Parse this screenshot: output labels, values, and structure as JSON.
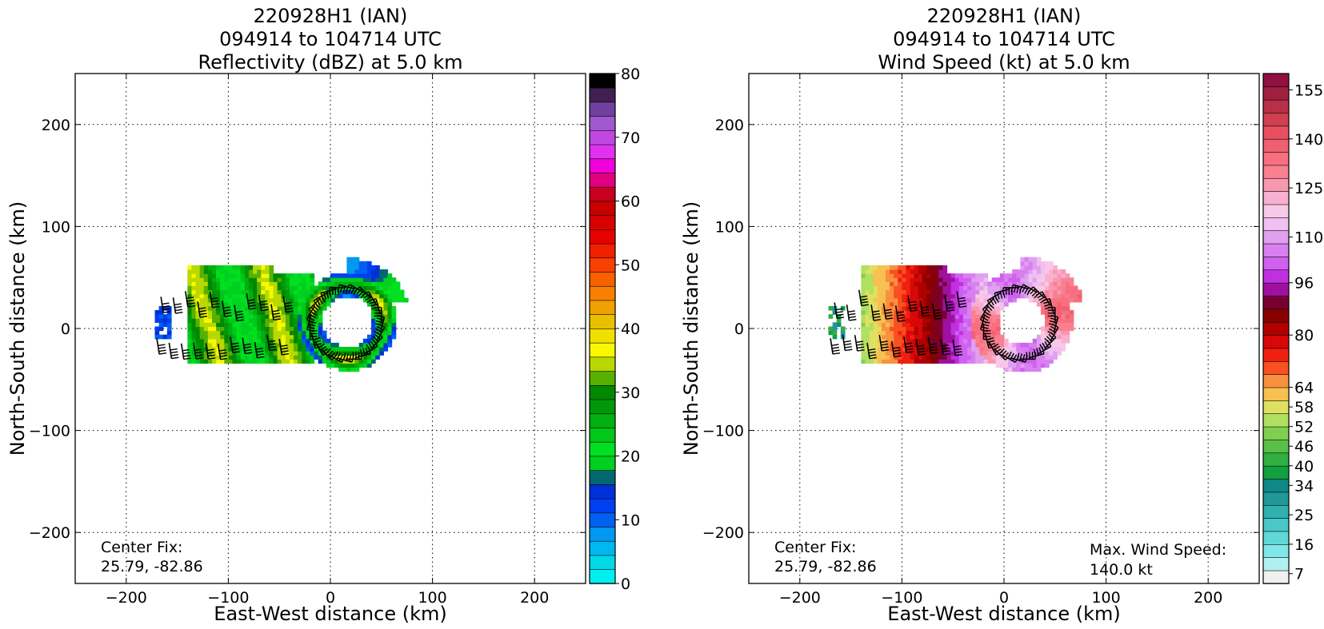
{
  "chart_data": [
    {
      "type": "heatmap",
      "title": [
        "220928H1 (IAN)",
        "094914 to 104714 UTC",
        "Reflectivity (dBZ) at 5.0 km"
      ],
      "xlabel": "East-West distance (km)",
      "ylabel": "North-South distance (km)",
      "xlim": [
        -250,
        250
      ],
      "ylim": [
        -250,
        250
      ],
      "xticks": [
        -200,
        -100,
        0,
        100,
        200
      ],
      "yticks": [
        -200,
        -100,
        0,
        100,
        200
      ],
      "grid": true,
      "annotation": {
        "label": "Center Fix:",
        "value": "25.79, -82.86"
      },
      "colorbar": {
        "min": 0,
        "max": 80,
        "tick_values": [
          0,
          10,
          20,
          30,
          40,
          50,
          60,
          70,
          80
        ],
        "colors": [
          "#00f0f0",
          "#00d8e8",
          "#00b8f0",
          "#0098f0",
          "#0060f0",
          "#0040f0",
          "#0030d8",
          "#006870",
          "#00d020",
          "#00e020",
          "#00c818",
          "#00b010",
          "#009808",
          "#008800",
          "#58b000",
          "#b8d800",
          "#f8f800",
          "#f0e000",
          "#e8c000",
          "#f0a000",
          "#f88000",
          "#f86000",
          "#f84000",
          "#f02000",
          "#e80000",
          "#d80000",
          "#c80000",
          "#c80020",
          "#e00080",
          "#f000d8",
          "#e030f0",
          "#c048e0",
          "#a058d0",
          "#7040a0",
          "#402050",
          "#000000"
        ]
      },
      "features": [
        {
          "kind": "eyewall-ring",
          "center": [
            15,
            5
          ],
          "radius_km": [
            25,
            48
          ]
        },
        {
          "kind": "rainband",
          "x_range_km": [
            -175,
            -20
          ],
          "y_range_km": [
            -35,
            60
          ]
        }
      ]
    },
    {
      "type": "heatmap",
      "title": [
        "220928H1 (IAN)",
        "094914 to 104714 UTC",
        "Wind Speed (kt) at 5.0 km"
      ],
      "xlabel": "East-West distance (km)",
      "ylabel": "North-South distance (km)",
      "xlim": [
        -250,
        250
      ],
      "ylim": [
        -250,
        250
      ],
      "xticks": [
        -200,
        -100,
        0,
        100,
        200
      ],
      "yticks": [
        -200,
        -100,
        0,
        100,
        200
      ],
      "grid": true,
      "annotation": {
        "label": "Center Fix:",
        "value": "25.79, -82.86"
      },
      "max_wind": {
        "label": "Max. Wind Speed:",
        "value": "140.0 kt"
      },
      "colorbar": {
        "min": 4,
        "max": 160,
        "tick_values": [
          7,
          16,
          25,
          34,
          40,
          46,
          52,
          58,
          64,
          80,
          96,
          110,
          125,
          140,
          155
        ],
        "colors": [
          "#f0f0f0",
          "#b0f0f0",
          "#80e8e8",
          "#60d8d8",
          "#48c8c8",
          "#30b0b0",
          "#209898",
          "#108888",
          "#10a040",
          "#30b040",
          "#58c048",
          "#80d050",
          "#b0e060",
          "#e0e060",
          "#f8c050",
          "#f89040",
          "#f85020",
          "#f02010",
          "#d80808",
          "#b00000",
          "#880000",
          "#780030",
          "#a010a0",
          "#c030e0",
          "#d060f0",
          "#d880f0",
          "#e0a0f0",
          "#f0c0f0",
          "#f8c8e8",
          "#f8b0d0",
          "#f898b0",
          "#f88090",
          "#f87080",
          "#f06070",
          "#e85060",
          "#d04050",
          "#b83048",
          "#a02040",
          "#901040"
        ]
      },
      "features": [
        {
          "kind": "eyewall-ring",
          "center": [
            15,
            5
          ],
          "radius_km": [
            22,
            50
          ]
        },
        {
          "kind": "rainband",
          "x_range_km": [
            -175,
            -20
          ],
          "y_range_km": [
            -35,
            60
          ]
        }
      ]
    }
  ]
}
